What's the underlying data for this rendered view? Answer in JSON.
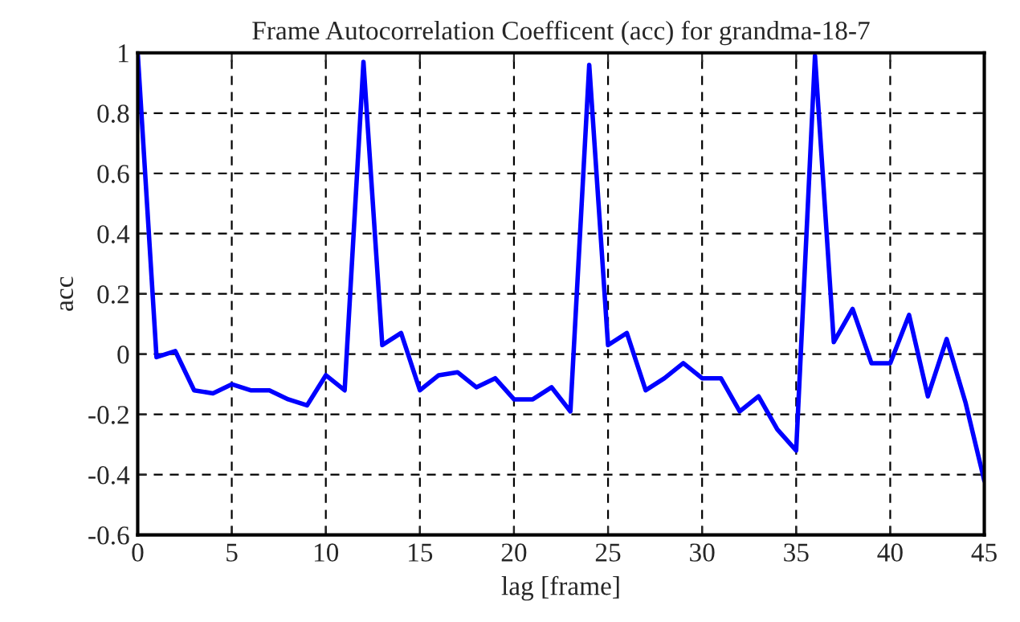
{
  "chart_data": {
    "type": "line",
    "title": "Frame Autocorrelation Coefficent (acc) for grandma-18-7",
    "xlabel": "lag [frame]",
    "ylabel": "acc",
    "x": [
      0,
      1,
      2,
      3,
      4,
      5,
      6,
      7,
      8,
      9,
      10,
      11,
      12,
      13,
      14,
      15,
      16,
      17,
      18,
      19,
      20,
      21,
      22,
      23,
      24,
      25,
      26,
      27,
      28,
      29,
      30,
      31,
      32,
      33,
      34,
      35,
      36,
      37,
      38,
      39,
      40,
      41,
      42,
      43,
      44,
      45
    ],
    "series": [
      {
        "color": "#0000ff",
        "values": [
          1,
          -0.01,
          0.01,
          -0.12,
          -0.13,
          -0.1,
          -0.12,
          -0.12,
          -0.15,
          -0.17,
          -0.07,
          -0.12,
          0.97,
          0.03,
          0.07,
          -0.12,
          -0.07,
          -0.06,
          -0.11,
          -0.08,
          -0.15,
          -0.15,
          -0.11,
          -0.19,
          0.96,
          0.03,
          0.07,
          -0.12,
          -0.08,
          -0.03,
          -0.08,
          -0.08,
          -0.19,
          -0.14,
          -0.25,
          -0.32,
          0.99,
          0.04,
          0.15,
          -0.03,
          -0.03,
          0.13,
          -0.14,
          0.05,
          -0.16,
          -0.42
        ]
      }
    ],
    "xlim": [
      0,
      45
    ],
    "ylim": [
      -0.6,
      1
    ],
    "xticks": [
      0,
      5,
      10,
      15,
      20,
      25,
      30,
      35,
      40,
      45
    ],
    "yticks": [
      -0.6,
      -0.4,
      -0.2,
      0,
      0.2,
      0.4,
      0.6,
      0.8,
      1
    ],
    "grid": true,
    "line_style": "solid",
    "marker": "none",
    "legend": false
  }
}
